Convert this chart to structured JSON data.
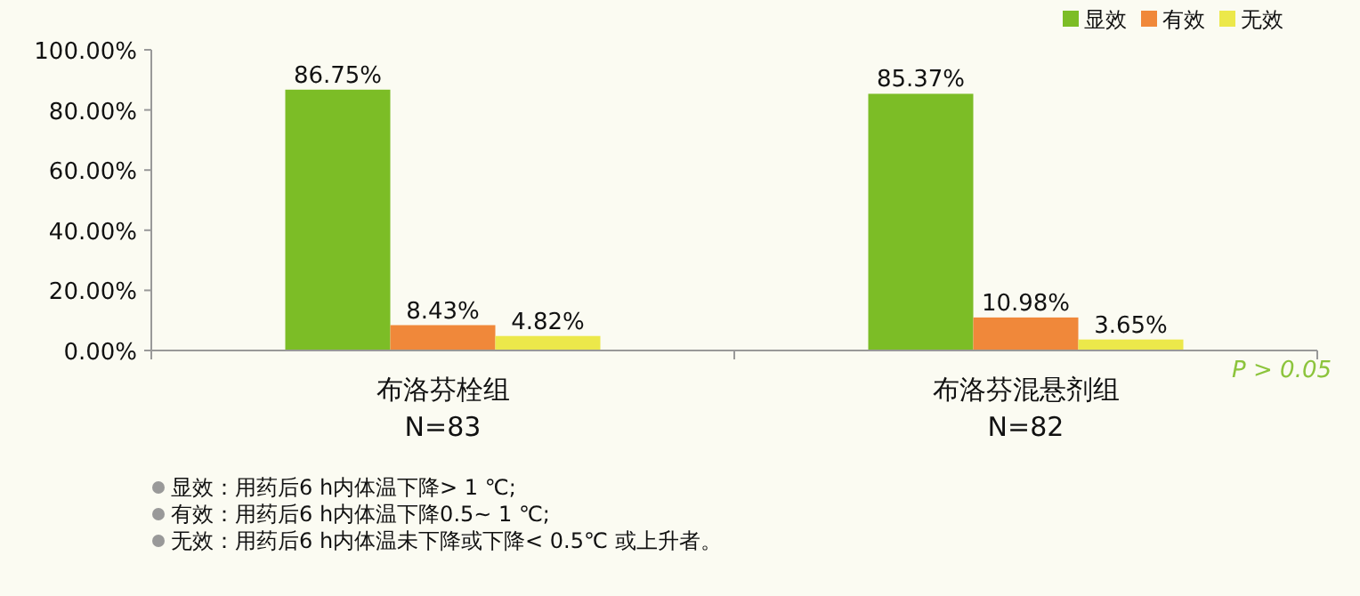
{
  "chart_data": {
    "type": "bar",
    "categories": [
      "布洛芬栓组\nN=83",
      "布洛芬混悬剂组\nN=82"
    ],
    "series": [
      {
        "name": "显效",
        "color": "#7cbd26",
        "values": [
          86.75,
          85.37
        ]
      },
      {
        "name": "有效",
        "color": "#f0883a",
        "values": [
          8.43,
          10.98
        ]
      },
      {
        "name": "无效",
        "color": "#ece84a",
        "values": [
          4.82,
          3.65
        ]
      }
    ],
    "ylim": [
      0,
      100
    ],
    "yticks": [
      {
        "value": 0,
        "label": "0.00%"
      },
      {
        "value": 20,
        "label": "20.00%"
      },
      {
        "value": 40,
        "label": "40.00%"
      },
      {
        "value": 60,
        "label": "60.00%"
      },
      {
        "value": 80,
        "label": "80.00%"
      },
      {
        "value": 100,
        "label": "100.00%"
      }
    ],
    "value_labels": [
      [
        "86.75%",
        "85.37%"
      ],
      [
        "8.43%",
        "10.98%"
      ],
      [
        "4.82%",
        "3.65%"
      ]
    ],
    "legend": "top right",
    "grid": false,
    "annotations": [
      "P > 0.05",
      "显效：用药后6 h内体温下降> 1 ℃;",
      "有效：用药后6 h内体温下降0.5~ 1 ℃;",
      "无效：用药后6 h内体温未下降或下降< 0.5℃ 或上升者。"
    ]
  }
}
